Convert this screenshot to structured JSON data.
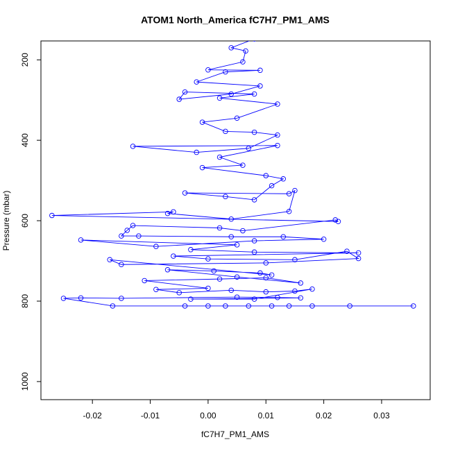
{
  "chart_data": {
    "type": "line",
    "title": "ATOM1 North_America fC7H7_PM1_AMS",
    "x_label": "fC7H7_PM1_AMS",
    "y_label": "Pressure (mbar)",
    "color": "#0000ff",
    "markers": true,
    "xlim": [
      -0.0289,
      0.0384
    ],
    "ylim": [
      1045,
      153
    ],
    "xticks": [
      -0.02,
      -0.01,
      {
        "value": 0,
        "label": "0.00"
      },
      0.01,
      0.02,
      0.03
    ],
    "yticks": [
      200,
      400,
      600,
      800,
      1000
    ],
    "x": [
      0.0355,
      0.0245,
      0.018,
      0.014,
      0.011,
      0.007,
      0.003,
      0.0,
      -0.004,
      -0.0165,
      -0.025,
      -0.022,
      -0.015,
      0.005,
      0.012,
      0.016,
      -0.003,
      0.008,
      0.018,
      0.015,
      0.01,
      0.004,
      -0.005,
      -0.009,
      0.0,
      -0.011,
      0.002,
      0.01,
      0.016,
      0.005,
      -0.007,
      0.001,
      0.009,
      0.011,
      -0.017,
      -0.015,
      0.01,
      0.026,
      0.024,
      0.015,
      0.0,
      -0.006,
      0.026,
      0.008,
      -0.003,
      0.005,
      -0.022,
      -0.009,
      0.008,
      0.02,
      0.013,
      0.004,
      -0.012,
      -0.015,
      -0.014,
      -0.013,
      0.002,
      0.006,
      0.022,
      0.0225,
      -0.027,
      -0.006,
      -0.007,
      0.004,
      0.014,
      0.015,
      0.014,
      -0.004,
      0.003,
      0.008,
      0.011,
      0.013,
      0.01,
      -0.001,
      0.006,
      0.002,
      0.012,
      -0.013,
      -0.002,
      0.007,
      0.012,
      0.008,
      0.003,
      -0.001,
      0.005,
      0.012,
      0.002,
      0.008,
      -0.004,
      -0.005,
      0.004,
      0.009,
      -0.002,
      0.003,
      0.009,
      0.0,
      0.006,
      0.0065,
      0.004,
      0.008
    ],
    "values": [
      812,
      812,
      812,
      812,
      812,
      812,
      812,
      812,
      812,
      812,
      793,
      792,
      793,
      790,
      791,
      792,
      795,
      795,
      770,
      775,
      777,
      773,
      779,
      771,
      768,
      749,
      745,
      742,
      755,
      740,
      722,
      725,
      730,
      735,
      697,
      709,
      705,
      694,
      676,
      697,
      695,
      688,
      680,
      678,
      672,
      660,
      648,
      664,
      650,
      646,
      640,
      640,
      638,
      638,
      624,
      612,
      618,
      625,
      598,
      602,
      587,
      578,
      582,
      596,
      577,
      525,
      533,
      531,
      540,
      548,
      513,
      496,
      488,
      468,
      462,
      442,
      413,
      415,
      430,
      420,
      387,
      380,
      378,
      355,
      345,
      310,
      295,
      285,
      280,
      298,
      285,
      265,
      255,
      230,
      226,
      225,
      205,
      178,
      170,
      148
    ]
  }
}
